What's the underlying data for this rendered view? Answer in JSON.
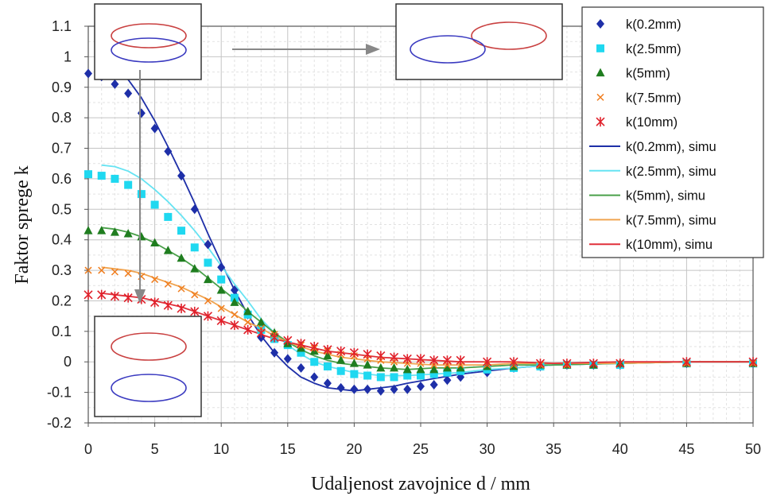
{
  "chart_data": {
    "type": "line",
    "title": "",
    "xlabel": "Udaljenost zavojnice  d / mm",
    "ylabel": "Faktor sprege k",
    "xlim": [
      0,
      50
    ],
    "ylim": [
      -0.2,
      1.1
    ],
    "xticks": [
      0,
      5,
      10,
      15,
      20,
      25,
      30,
      35,
      40,
      45,
      50
    ],
    "yticks": [
      1.1,
      1,
      0.9,
      0.8,
      0.7,
      0.6,
      0.5,
      0.4,
      0.3,
      0.2,
      0.1,
      0,
      -0.1,
      -0.2
    ],
    "ytick_labels": [
      "1.1",
      "1",
      "0.9",
      "0.8",
      "0.7",
      "0.6",
      "0.5",
      "0.4",
      "0.3",
      "0.2",
      "0.1",
      "0",
      "-0.1",
      "-0.2"
    ],
    "grid": true,
    "legend_position": "top-right",
    "measured_series": [
      {
        "name": "k(0.2mm)",
        "color": "#1e2fa8",
        "marker": "diamond",
        "x": [
          0,
          1,
          2,
          3,
          4,
          5,
          6,
          7,
          8,
          9,
          10,
          11,
          12,
          13,
          14,
          15,
          16,
          17,
          18,
          19,
          20,
          21,
          22,
          23,
          24,
          25,
          26,
          27,
          28,
          30,
          32,
          34,
          36,
          38,
          40,
          45,
          50
        ],
        "y": [
          0.945,
          0.935,
          0.91,
          0.88,
          0.815,
          0.765,
          0.69,
          0.61,
          0.5,
          0.385,
          0.31,
          0.235,
          0.155,
          0.08,
          0.03,
          0.01,
          -0.02,
          -0.05,
          -0.07,
          -0.085,
          -0.09,
          -0.09,
          -0.095,
          -0.09,
          -0.09,
          -0.08,
          -0.075,
          -0.06,
          -0.05,
          -0.035,
          -0.02,
          -0.015,
          -0.01,
          -0.01,
          -0.01,
          -0.005,
          -0.005
        ]
      },
      {
        "name": "k(2.5mm)",
        "color": "#1fd8f0",
        "marker": "square",
        "x": [
          0,
          1,
          2,
          3,
          4,
          5,
          6,
          7,
          8,
          9,
          10,
          11,
          12,
          13,
          14,
          15,
          16,
          17,
          18,
          19,
          20,
          21,
          22,
          23,
          24,
          25,
          26,
          27,
          28,
          30,
          32,
          34,
          36,
          38,
          40,
          45,
          50
        ],
        "y": [
          0.615,
          0.61,
          0.6,
          0.58,
          0.55,
          0.515,
          0.475,
          0.43,
          0.375,
          0.325,
          0.27,
          0.21,
          0.155,
          0.105,
          0.075,
          0.055,
          0.03,
          0.0,
          -0.015,
          -0.03,
          -0.04,
          -0.045,
          -0.05,
          -0.05,
          -0.045,
          -0.045,
          -0.04,
          -0.035,
          -0.03,
          -0.025,
          -0.02,
          -0.015,
          -0.01,
          -0.01,
          -0.01,
          -0.005,
          -0.005
        ]
      },
      {
        "name": "k(5mm)",
        "color": "#1f7d1f",
        "marker": "triangle",
        "x": [
          0,
          1,
          2,
          3,
          4,
          5,
          6,
          7,
          8,
          9,
          10,
          11,
          12,
          13,
          14,
          15,
          16,
          17,
          18,
          19,
          20,
          21,
          22,
          23,
          24,
          25,
          26,
          27,
          28,
          30,
          32,
          34,
          36,
          38,
          40,
          45,
          50
        ],
        "y": [
          0.43,
          0.43,
          0.425,
          0.42,
          0.41,
          0.39,
          0.365,
          0.34,
          0.305,
          0.27,
          0.235,
          0.195,
          0.165,
          0.13,
          0.095,
          0.06,
          0.045,
          0.035,
          0.02,
          0.005,
          -0.005,
          -0.01,
          -0.02,
          -0.02,
          -0.025,
          -0.025,
          -0.025,
          -0.02,
          -0.02,
          -0.015,
          -0.015,
          -0.01,
          -0.01,
          -0.01,
          -0.005,
          -0.005,
          -0.005
        ]
      },
      {
        "name": "k(7.5mm)",
        "color": "#f07d1e",
        "marker": "x",
        "x": [
          0,
          1,
          2,
          3,
          4,
          5,
          6,
          7,
          8,
          9,
          10,
          11,
          12,
          13,
          14,
          15,
          16,
          17,
          18,
          19,
          20,
          21,
          22,
          23,
          24,
          25,
          26,
          27,
          28,
          30,
          32,
          34,
          36,
          38,
          40,
          45,
          50
        ],
        "y": [
          0.3,
          0.3,
          0.295,
          0.29,
          0.28,
          0.27,
          0.255,
          0.24,
          0.22,
          0.2,
          0.175,
          0.155,
          0.13,
          0.11,
          0.09,
          0.07,
          0.055,
          0.045,
          0.035,
          0.025,
          0.02,
          0.01,
          0.005,
          0.0,
          -0.005,
          -0.005,
          -0.01,
          -0.01,
          -0.01,
          -0.01,
          -0.01,
          -0.01,
          -0.01,
          -0.005,
          -0.005,
          -0.005,
          -0.005
        ]
      },
      {
        "name": "k(10mm)",
        "color": "#e0202a",
        "marker": "star",
        "x": [
          0,
          1,
          2,
          3,
          4,
          5,
          6,
          7,
          8,
          9,
          10,
          11,
          12,
          13,
          14,
          15,
          16,
          17,
          18,
          19,
          20,
          21,
          22,
          23,
          24,
          25,
          26,
          27,
          28,
          30,
          32,
          34,
          36,
          38,
          40,
          45,
          50
        ],
        "y": [
          0.22,
          0.22,
          0.215,
          0.21,
          0.205,
          0.195,
          0.185,
          0.175,
          0.165,
          0.15,
          0.135,
          0.12,
          0.105,
          0.095,
          0.08,
          0.07,
          0.06,
          0.05,
          0.04,
          0.035,
          0.03,
          0.025,
          0.02,
          0.015,
          0.01,
          0.01,
          0.005,
          0.005,
          0.005,
          0.0,
          0.0,
          -0.005,
          -0.005,
          -0.005,
          -0.005,
          0.0,
          0.0
        ]
      }
    ],
    "simulation_series": [
      {
        "name": "k(0.2mm), simu",
        "color": "#1e2fa8",
        "x": [
          1,
          2,
          3,
          4,
          5,
          6,
          7,
          8,
          9,
          10,
          11,
          12,
          13,
          14,
          15,
          16,
          17,
          18,
          19,
          20,
          21,
          22,
          23,
          24,
          26,
          28,
          30,
          32,
          35,
          40,
          45,
          50
        ],
        "y": [
          0.99,
          0.965,
          0.925,
          0.865,
          0.79,
          0.705,
          0.615,
          0.52,
          0.42,
          0.325,
          0.235,
          0.155,
          0.085,
          0.03,
          -0.015,
          -0.05,
          -0.07,
          -0.085,
          -0.09,
          -0.095,
          -0.09,
          -0.085,
          -0.08,
          -0.07,
          -0.055,
          -0.04,
          -0.03,
          -0.02,
          -0.01,
          -0.005,
          0.0,
          0.0
        ]
      },
      {
        "name": "k(2.5mm), simu",
        "color": "#66e3f2",
        "x": [
          1,
          2,
          3,
          4,
          5,
          6,
          7,
          8,
          9,
          10,
          11,
          12,
          13,
          14,
          15,
          16,
          17,
          18,
          19,
          20,
          22,
          24,
          26,
          28,
          30,
          32,
          35,
          40,
          45,
          50
        ],
        "y": [
          0.645,
          0.64,
          0.625,
          0.6,
          0.565,
          0.525,
          0.48,
          0.43,
          0.375,
          0.315,
          0.255,
          0.2,
          0.14,
          0.095,
          0.055,
          0.025,
          0.0,
          -0.015,
          -0.025,
          -0.035,
          -0.045,
          -0.045,
          -0.04,
          -0.035,
          -0.025,
          -0.02,
          -0.01,
          -0.005,
          0.0,
          0.0
        ]
      },
      {
        "name": "k(5mm), simu",
        "color": "#4aa04a",
        "x": [
          1,
          2,
          3,
          4,
          5,
          6,
          7,
          8,
          9,
          10,
          11,
          12,
          13,
          14,
          15,
          16,
          17,
          18,
          19,
          20,
          22,
          24,
          26,
          28,
          30,
          32,
          35,
          40,
          45,
          50
        ],
        "y": [
          0.44,
          0.435,
          0.425,
          0.41,
          0.39,
          0.365,
          0.34,
          0.31,
          0.275,
          0.24,
          0.205,
          0.165,
          0.13,
          0.095,
          0.065,
          0.04,
          0.02,
          0.005,
          -0.005,
          -0.01,
          -0.02,
          -0.025,
          -0.02,
          -0.02,
          -0.015,
          -0.01,
          -0.01,
          -0.005,
          0.0,
          0.0
        ]
      },
      {
        "name": "k(7.5mm), simu",
        "color": "#f0a450",
        "x": [
          1,
          2,
          3,
          4,
          5,
          6,
          7,
          8,
          9,
          10,
          11,
          12,
          13,
          14,
          15,
          16,
          17,
          18,
          19,
          20,
          22,
          24,
          26,
          28,
          30,
          32,
          35,
          40,
          45,
          50
        ],
        "y": [
          0.31,
          0.305,
          0.3,
          0.29,
          0.275,
          0.26,
          0.245,
          0.225,
          0.205,
          0.18,
          0.155,
          0.13,
          0.11,
          0.085,
          0.065,
          0.05,
          0.035,
          0.025,
          0.015,
          0.01,
          0.0,
          -0.005,
          -0.01,
          -0.01,
          -0.01,
          -0.005,
          -0.005,
          -0.005,
          0.0,
          0.0
        ]
      },
      {
        "name": "k(10mm), simu",
        "color": "#e0303a",
        "x": [
          1,
          2,
          3,
          4,
          5,
          6,
          7,
          8,
          9,
          10,
          11,
          12,
          13,
          14,
          15,
          16,
          17,
          18,
          19,
          20,
          22,
          24,
          26,
          28,
          30,
          32,
          35,
          40,
          45,
          50
        ],
        "y": [
          0.225,
          0.22,
          0.215,
          0.21,
          0.2,
          0.19,
          0.18,
          0.165,
          0.15,
          0.135,
          0.12,
          0.105,
          0.09,
          0.075,
          0.065,
          0.055,
          0.045,
          0.035,
          0.03,
          0.025,
          0.015,
          0.01,
          0.005,
          0.0,
          0.0,
          0.0,
          -0.005,
          0.0,
          0.0,
          0.0
        ]
      }
    ]
  },
  "insets": {
    "top_coil_color": "#c94040",
    "bottom_coil_color": "#3a3ac0",
    "arrow_color": "#888888"
  }
}
